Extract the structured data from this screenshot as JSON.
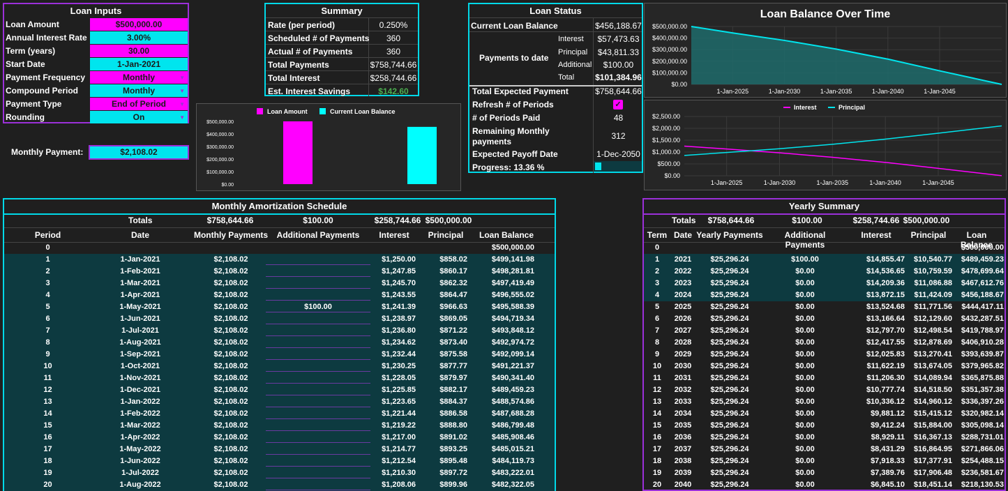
{
  "loan_inputs": {
    "title": "Loan Inputs",
    "rows": [
      {
        "label": "Loan Amount",
        "value": "$500,000.00",
        "color": "#ff00ff",
        "dropdown": false
      },
      {
        "label": "Annual Interest Rate",
        "value": "3.00%",
        "color": "#00e5ee",
        "dropdown": false
      },
      {
        "label": "Term (years)",
        "value": "30.00",
        "color": "#ff00ff",
        "dropdown": false
      },
      {
        "label": "Start Date",
        "value": "1-Jan-2021",
        "color": "#00e5ee",
        "dropdown": false
      },
      {
        "label": "Payment Frequency",
        "value": "Monthly",
        "color": "#ff00ff",
        "dropdown": true
      },
      {
        "label": "Compound Period",
        "value": "Monthly",
        "color": "#00e5ee",
        "dropdown": true
      },
      {
        "label": "Payment Type",
        "value": "End of Period",
        "color": "#ff00ff",
        "dropdown": true
      },
      {
        "label": "Rounding",
        "value": "On",
        "color": "#00e5ee",
        "dropdown": true
      }
    ],
    "monthly_payment_label": "Monthly Payment:",
    "monthly_payment_value": "$2,108.02"
  },
  "summary": {
    "title": "Summary",
    "rows": [
      {
        "label": "Rate (per period)",
        "value": "0.250%"
      },
      {
        "label": "Scheduled # of Payments",
        "value": "360"
      },
      {
        "label": "Actual # of Payments",
        "value": "360"
      },
      {
        "label": "Total Payments",
        "value": "$758,744.66"
      },
      {
        "label": "Total Interest",
        "value": "$258,744.66"
      },
      {
        "label": "Est. Interest Savings",
        "value": "$142.60"
      }
    ],
    "savings_color": "#4caf50"
  },
  "loan_status": {
    "title": "Loan Status",
    "current_balance_label": "Current Loan Balance",
    "current_balance_value": "$456,188.67",
    "payments_to_date_label": "Payments to date",
    "interest_label": "Interest",
    "interest_value": "$57,473.63",
    "principal_label": "Principal",
    "principal_value": "$43,811.33",
    "additional_label": "Additional",
    "additional_value": "$100.00",
    "total_label": "Total",
    "total_value": "$101,384.96",
    "total_expected_label": "Total Expected Payment",
    "total_expected_value": "$758,644.66",
    "refresh_label": "Refresh # of Periods",
    "refresh_checked": true,
    "periods_paid_label": "# of Periods Paid",
    "periods_paid_value": "48",
    "remaining_label_1": "Remaining Monthly",
    "remaining_label_2": "payments",
    "remaining_value": "312",
    "payoff_label": "Expected Payoff Date",
    "payoff_value": "1-Dec-2050",
    "progress_label": "Progress: 13.36 %",
    "progress_fraction": 0.1336
  },
  "chart_data": [
    {
      "type": "bar",
      "categories": [
        "Loan Amount",
        "Current Loan Balance"
      ],
      "values": [
        500000,
        456188.67
      ],
      "colors": [
        "#ff00ff",
        "#00ffff"
      ],
      "legend": [
        "Loan Amount",
        "Current Loan Balance"
      ],
      "ylim": [
        0,
        500000
      ],
      "ytick_labels": [
        "$0.00",
        "$100,000.00",
        "$200,000.00",
        "$300,000.00",
        "$400,000.00",
        "$500,000.00"
      ],
      "legend_position": "top"
    },
    {
      "type": "area",
      "title": "Loan Balance Over Time",
      "x": [
        2021,
        2025,
        2030,
        2035,
        2040,
        2045,
        2051
      ],
      "y": [
        500000,
        444417.11,
        379965.82,
        305098.14,
        218130.53,
        117000,
        0
      ],
      "color": "#00e5ee",
      "ylim": [
        0,
        500000
      ],
      "ytick_labels": [
        "$0.00",
        "$100,000.00",
        "$200,000.00",
        "$300,000.00",
        "$400,000.00",
        "$500,000.00"
      ],
      "xtick_labels": [
        "1-Jan-2025",
        "1-Jan-2030",
        "1-Jan-2035",
        "1-Jan-2040",
        "1-Jan-2045"
      ]
    },
    {
      "type": "line",
      "x": [
        2021,
        2025,
        2030,
        2035,
        2040,
        2045,
        2051
      ],
      "series": [
        {
          "name": "Interest",
          "color": "#ff00ff",
          "values": [
            1250,
            1127,
            968,
            781,
            564,
            313,
            5
          ]
        },
        {
          "name": "Principal",
          "color": "#00e5ee",
          "values": [
            858,
            981,
            1140,
            1327,
            1544,
            1795,
            2103
          ]
        }
      ],
      "ylim": [
        0,
        2500
      ],
      "ytick_labels": [
        "$0.00",
        "$500.00",
        "$1,000.00",
        "$1,500.00",
        "$2,000.00",
        "$2,500.00"
      ],
      "xtick_labels": [
        "1-Jan-2025",
        "1-Jan-2030",
        "1-Jan-2035",
        "1-Jan-2040",
        "1-Jan-2045"
      ],
      "legend_position": "top"
    }
  ],
  "amortization": {
    "title": "Monthly Amortization Schedule",
    "totals_label": "Totals",
    "totals": {
      "monthly": "$758,644.66",
      "additional": "$100.00",
      "interest": "$258,744.66",
      "principal": "$500,000.00"
    },
    "headers": [
      "Period",
      "Date",
      "Monthly Payments",
      "Additional Payments",
      "Interest",
      "Principal",
      "Loan Balance"
    ],
    "rows": [
      [
        "0",
        "",
        "",
        "",
        "",
        "",
        "$500,000.00"
      ],
      [
        "1",
        "1-Jan-2021",
        "$2,108.02",
        "",
        "$1,250.00",
        "$858.02",
        "$499,141.98"
      ],
      [
        "2",
        "1-Feb-2021",
        "$2,108.02",
        "",
        "$1,247.85",
        "$860.17",
        "$498,281.81"
      ],
      [
        "3",
        "1-Mar-2021",
        "$2,108.02",
        "",
        "$1,245.70",
        "$862.32",
        "$497,419.49"
      ],
      [
        "4",
        "1-Apr-2021",
        "$2,108.02",
        "",
        "$1,243.55",
        "$864.47",
        "$496,555.02"
      ],
      [
        "5",
        "1-May-2021",
        "$2,108.02",
        "$100.00",
        "$1,241.39",
        "$966.63",
        "$495,588.39"
      ],
      [
        "6",
        "1-Jun-2021",
        "$2,108.02",
        "",
        "$1,238.97",
        "$869.05",
        "$494,719.34"
      ],
      [
        "7",
        "1-Jul-2021",
        "$2,108.02",
        "",
        "$1,236.80",
        "$871.22",
        "$493,848.12"
      ],
      [
        "8",
        "1-Aug-2021",
        "$2,108.02",
        "",
        "$1,234.62",
        "$873.40",
        "$492,974.72"
      ],
      [
        "9",
        "1-Sep-2021",
        "$2,108.02",
        "",
        "$1,232.44",
        "$875.58",
        "$492,099.14"
      ],
      [
        "10",
        "1-Oct-2021",
        "$2,108.02",
        "",
        "$1,230.25",
        "$877.77",
        "$491,221.37"
      ],
      [
        "11",
        "1-Nov-2021",
        "$2,108.02",
        "",
        "$1,228.05",
        "$879.97",
        "$490,341.40"
      ],
      [
        "12",
        "1-Dec-2021",
        "$2,108.02",
        "",
        "$1,225.85",
        "$882.17",
        "$489,459.23"
      ],
      [
        "13",
        "1-Jan-2022",
        "$2,108.02",
        "",
        "$1,223.65",
        "$884.37",
        "$488,574.86"
      ],
      [
        "14",
        "1-Feb-2022",
        "$2,108.02",
        "",
        "$1,221.44",
        "$886.58",
        "$487,688.28"
      ],
      [
        "15",
        "1-Mar-2022",
        "$2,108.02",
        "",
        "$1,219.22",
        "$888.80",
        "$486,799.48"
      ],
      [
        "16",
        "1-Apr-2022",
        "$2,108.02",
        "",
        "$1,217.00",
        "$891.02",
        "$485,908.46"
      ],
      [
        "17",
        "1-May-2022",
        "$2,108.02",
        "",
        "$1,214.77",
        "$893.25",
        "$485,015.21"
      ],
      [
        "18",
        "1-Jun-2022",
        "$2,108.02",
        "",
        "$1,212.54",
        "$895.48",
        "$484,119.73"
      ],
      [
        "19",
        "1-Jul-2022",
        "$2,108.02",
        "",
        "$1,210.30",
        "$897.72",
        "$483,222.01"
      ],
      [
        "20",
        "1-Aug-2022",
        "$2,108.02",
        "",
        "$1,208.06",
        "$899.96",
        "$482,322.05"
      ]
    ]
  },
  "yearly": {
    "title": "Yearly Summary",
    "totals_label": "Totals",
    "totals": {
      "payments": "$758,644.66",
      "additional": "$100.00",
      "interest": "$258,744.66",
      "principal": "$500,000.00"
    },
    "headers": [
      "Term",
      "Date",
      "Yearly Payments",
      "Additional Payments",
      "Interest",
      "Principal",
      "Loan Balance"
    ],
    "rows": [
      [
        "0",
        "",
        "",
        "",
        "",
        "",
        "$500,000.00"
      ],
      [
        "1",
        "2021",
        "$25,296.24",
        "$100.00",
        "$14,855.47",
        "$10,540.77",
        "$489,459.23"
      ],
      [
        "2",
        "2022",
        "$25,296.24",
        "$0.00",
        "$14,536.65",
        "$10,759.59",
        "$478,699.64"
      ],
      [
        "3",
        "2023",
        "$25,296.24",
        "$0.00",
        "$14,209.36",
        "$11,086.88",
        "$467,612.76"
      ],
      [
        "4",
        "2024",
        "$25,296.24",
        "$0.00",
        "$13,872.15",
        "$11,424.09",
        "$456,188.67"
      ],
      [
        "5",
        "2025",
        "$25,296.24",
        "$0.00",
        "$13,524.68",
        "$11,771.56",
        "$444,417.11"
      ],
      [
        "6",
        "2026",
        "$25,296.24",
        "$0.00",
        "$13,166.64",
        "$12,129.60",
        "$432,287.51"
      ],
      [
        "7",
        "2027",
        "$25,296.24",
        "$0.00",
        "$12,797.70",
        "$12,498.54",
        "$419,788.97"
      ],
      [
        "8",
        "2028",
        "$25,296.24",
        "$0.00",
        "$12,417.55",
        "$12,878.69",
        "$406,910.28"
      ],
      [
        "9",
        "2029",
        "$25,296.24",
        "$0.00",
        "$12,025.83",
        "$13,270.41",
        "$393,639.87"
      ],
      [
        "10",
        "2030",
        "$25,296.24",
        "$0.00",
        "$11,622.19",
        "$13,674.05",
        "$379,965.82"
      ],
      [
        "11",
        "2031",
        "$25,296.24",
        "$0.00",
        "$11,206.30",
        "$14,089.94",
        "$365,875.88"
      ],
      [
        "12",
        "2032",
        "$25,296.24",
        "$0.00",
        "$10,777.74",
        "$14,518.50",
        "$351,357.38"
      ],
      [
        "13",
        "2033",
        "$25,296.24",
        "$0.00",
        "$10,336.12",
        "$14,960.12",
        "$336,397.26"
      ],
      [
        "14",
        "2034",
        "$25,296.24",
        "$0.00",
        "$9,881.12",
        "$15,415.12",
        "$320,982.14"
      ],
      [
        "15",
        "2035",
        "$25,296.24",
        "$0.00",
        "$9,412.24",
        "$15,884.00",
        "$305,098.14"
      ],
      [
        "16",
        "2036",
        "$25,296.24",
        "$0.00",
        "$8,929.11",
        "$16,367.13",
        "$288,731.01"
      ],
      [
        "17",
        "2037",
        "$25,296.24",
        "$0.00",
        "$8,431.29",
        "$16,864.95",
        "$271,866.06"
      ],
      [
        "18",
        "2038",
        "$25,296.24",
        "$0.00",
        "$7,918.33",
        "$17,377.91",
        "$254,488.15"
      ],
      [
        "19",
        "2039",
        "$25,296.24",
        "$0.00",
        "$7,389.76",
        "$17,906.48",
        "$236,581.67"
      ],
      [
        "20",
        "2040",
        "$25,296.24",
        "$0.00",
        "$6,845.10",
        "$18,451.14",
        "$218,130.53"
      ]
    ]
  }
}
